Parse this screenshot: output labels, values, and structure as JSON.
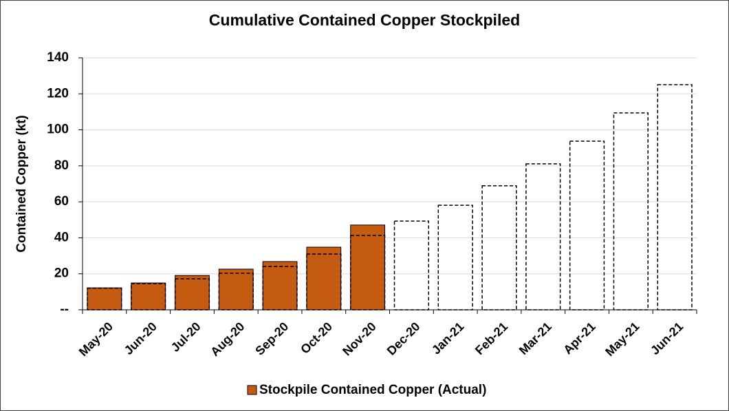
{
  "chart_data": {
    "type": "bar",
    "title": "Cumulative Contained Copper Stockpiled",
    "y_label": "Contained Copper (kt)",
    "categories": [
      "May-20",
      "Jun-20",
      "Jul-20",
      "Aug-20",
      "Sep-20",
      "Oct-20",
      "Nov-20",
      "Dec-20",
      "Jan-21",
      "Feb-21",
      "Mar-21",
      "Apr-21",
      "May-21",
      "Jun-21"
    ],
    "series": [
      {
        "name": "Stockpile Contained Copper (Actual)",
        "color": "#c55a11",
        "style": "solid",
        "values": [
          12.2,
          14.9,
          19.1,
          22.6,
          26.8,
          34.8,
          47.1,
          null,
          null,
          null,
          null,
          null,
          null,
          null
        ]
      },
      {
        "color": "#000000",
        "style": "dashed",
        "values": [
          12,
          14.5,
          17.2,
          20.3,
          24.1,
          31,
          41.3,
          49.3,
          58.1,
          68.9,
          81.1,
          93.7,
          109.4,
          125.1
        ]
      }
    ],
    "ylim": [
      0,
      140
    ],
    "yticks": [
      {
        "value": 0,
        "label": "--"
      },
      20,
      40,
      60,
      80,
      100,
      120,
      140
    ],
    "grid": true,
    "legend": "bottom"
  }
}
